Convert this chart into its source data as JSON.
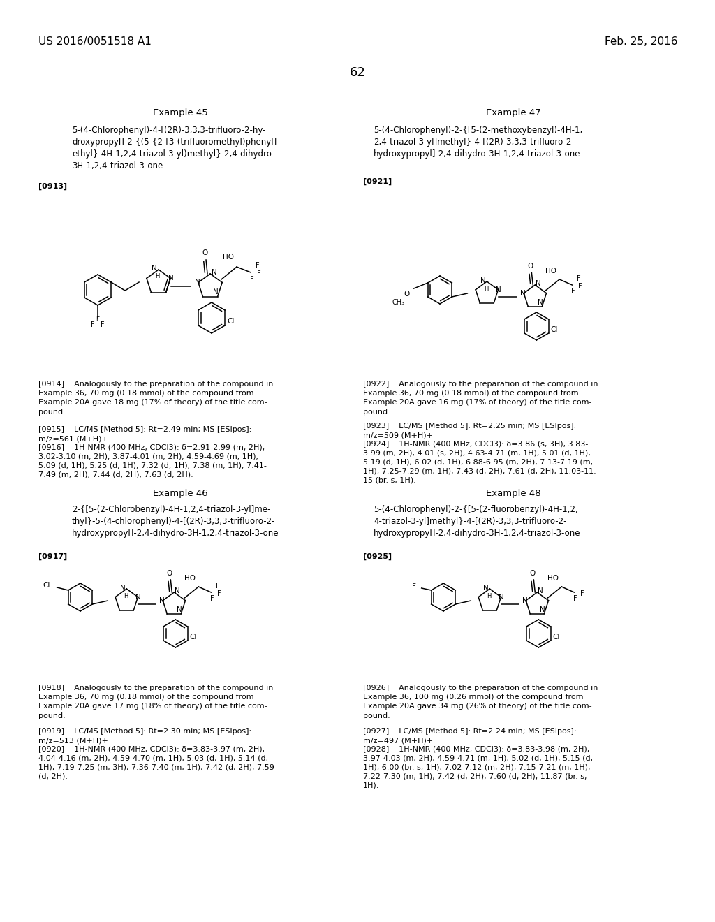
{
  "page_number": "62",
  "header_left": "US 2016/0051518 A1",
  "header_right": "Feb. 25, 2016",
  "background_color": "#ffffff",
  "text_color": "#000000",
  "font_size_header": 11,
  "font_size_page_num": 13,
  "font_size_example": 9.5,
  "font_size_body": 8.0,
  "font_size_compound": 8.5,
  "example45_title": "Example 45",
  "example45_compound": "5-(4-Chlorophenyl)-4-[(2R)-3,3,3-trifluoro-2-hy-\ndroxypropyl]-2-{(5-{2-[3-(trifluoromethyl)phenyl]-\nethyl}-4H-1,2,4-triazol-3-yl)methyl}-2,4-dihydro-\n3H-1,2,4-triazol-3-one",
  "example45_para0913": "[0913]",
  "example45_para0914": "[0914]    Analogously to the preparation of the compound in\nExample 36, 70 mg (0.18 mmol) of the compound from\nExample 20A gave 18 mg (17% of theory) of the title com-\npound.",
  "example45_para0915": "[0915]    LC/MS [Method 5]: Rt=2.49 min; MS [ESIpos]:\nm/z=561 (M+H)+",
  "example45_para0916": "[0916]    1H-NMR (400 MHz, CDCl3): δ=2.91-2.99 (m, 2H),\n3.02-3.10 (m, 2H), 3.87-4.01 (m, 2H), 4.59-4.69 (m, 1H),\n5.09 (d, 1H), 5.25 (d, 1H), 7.32 (d, 1H), 7.38 (m, 1H), 7.41-\n7.49 (m, 2H), 7.44 (d, 2H), 7.63 (d, 2H).",
  "example46_title": "Example 46",
  "example46_compound": "2-{[5-(2-Chlorobenzyl)-4H-1,2,4-triazol-3-yl]me-\nthyl}-5-(4-chlorophenyl)-4-[(2R)-3,3,3-trifluoro-2-\nhydroxypropyl]-2,4-dihydro-3H-1,2,4-triazol-3-one",
  "example46_para0917": "[0917]",
  "example46_para0918": "[0918]    Analogously to the preparation of the compound in\nExample 36, 70 mg (0.18 mmol) of the compound from\nExample 20A gave 17 mg (18% of theory) of the title com-\npound.",
  "example46_para0919": "[0919]    LC/MS [Method 5]: Rt=2.30 min; MS [ESIpos]:\nm/z=513 (M+H)+",
  "example46_para0920": "[0920]    1H-NMR (400 MHz, CDCl3): δ=3.83-3.97 (m, 2H),\n4.04-4.16 (m, 2H), 4.59-4.70 (m, 1H), 5.03 (d, 1H), 5.14 (d,\n1H), 7.19-7.25 (m, 3H), 7.36-7.40 (m, 1H), 7.42 (d, 2H), 7.59\n(d, 2H).",
  "example47_title": "Example 47",
  "example47_compound": "5-(4-Chlorophenyl)-2-{[5-(2-methoxybenzyl)-4H-1,\n2,4-triazol-3-yl]methyl}-4-[(2R)-3,3,3-trifluoro-2-\nhydroxypropyl]-2,4-dihydro-3H-1,2,4-triazol-3-one",
  "example47_para0921": "[0921]",
  "example47_para0922": "[0922]    Analogously to the preparation of the compound in\nExample 36, 70 mg (0.18 mmol) of the compound from\nExample 20A gave 16 mg (17% of theory) of the title com-\npound.",
  "example47_para0923": "[0923]    LC/MS [Method 5]: Rt=2.25 min; MS [ESIpos]:\nm/z=509 (M+H)+",
  "example47_para0924": "[0924]    1H-NMR (400 MHz, CDCl3): δ=3.86 (s, 3H), 3.83-\n3.99 (m, 2H), 4.01 (s, 2H), 4.63-4.71 (m, 1H), 5.01 (d, 1H),\n5.19 (d, 1H), 6.02 (d, 1H), 6.88-6.95 (m, 2H), 7.13-7.19 (m,\n1H), 7.25-7.29 (m, 1H), 7.43 (d, 2H), 7.61 (d, 2H), 11.03-11.\n15 (br. s, 1H).",
  "example48_title": "Example 48",
  "example48_compound": "5-(4-Chlorophenyl)-2-{[5-(2-fluorobenzyl)-4H-1,2,\n4-triazol-3-yl]methyl}-4-[(2R)-3,3,3-trifluoro-2-\nhydroxypropyl]-2,4-dihydro-3H-1,2,4-triazol-3-one",
  "example48_para0925": "[0925]",
  "example48_para0926": "[0926]    Analogously to the preparation of the compound in\nExample 36, 100 mg (0.26 mmol) of the compound from\nExample 20A gave 34 mg (26% of theory) of the title com-\npound.",
  "example48_para0927": "[0927]    LC/MS [Method 5]: Rt=2.24 min; MS [ESIpos]:\nm/z=497 (M+H)+",
  "example48_para0928": "[0928]    1H-NMR (400 MHz, CDCl3): δ=3.83-3.98 (m, 2H),\n3.97-4.03 (m, 2H), 4.59-4.71 (m, 1H), 5.02 (d, 1H), 5.15 (d,\n1H), 6.00 (br. s, 1H), 7.02-7.12 (m, 2H), 7.15-7.21 (m, 1H),\n7.22-7.30 (m, 1H), 7.42 (d, 2H), 7.60 (d, 2H), 11.87 (br. s,\n1H)."
}
